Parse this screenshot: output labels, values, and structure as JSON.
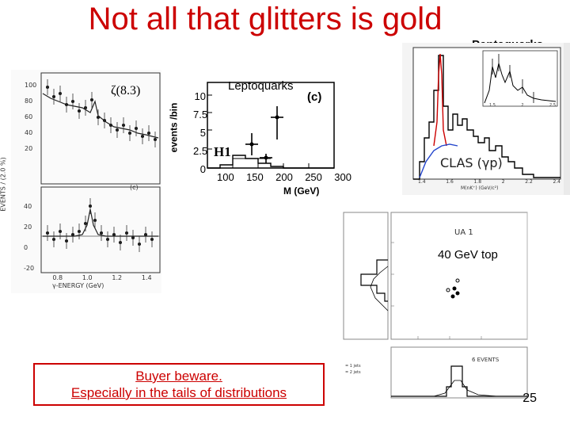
{
  "slide": {
    "title": "Not all that glitters is gold",
    "page_number": "25",
    "warning_line1": "Buyer beware.",
    "warning_line2": "Especially in the tails of distributions"
  },
  "zeta_plot": {
    "label": "ζ(8.3)",
    "y_axis_label": "EVENTS / (2.0 %)",
    "x_axis_label": "γ-ENERGY (GeV)",
    "top_y_ticks": [
      "100",
      "80",
      "60",
      "40",
      "20"
    ],
    "bottom_y_ticks": [
      "40",
      "20",
      "0",
      "-20"
    ],
    "x_ticks": [
      "0.8",
      "1.0",
      "1.2",
      "1.4"
    ],
    "panel_mark": "(c)"
  },
  "leptoquark_plot": {
    "label": "Leptoquarks",
    "y_axis_label": "events /bin",
    "x_axis_label": "M (GeV)",
    "y_ticks": [
      "10",
      "7.5",
      "5",
      "2.5",
      "0"
    ],
    "x_ticks": [
      "100",
      "150",
      "200",
      "250",
      "300"
    ],
    "panel_mark": "(c)",
    "experiment": "H1"
  },
  "pentaquark_plot": {
    "label": "Pentaquarks",
    "experiment": "CLAS (γp)",
    "x_ticks": [
      "1.4",
      "1.6",
      "1.8",
      "2",
      "2.2",
      "2.4"
    ],
    "inset_x_ticks": [
      "1.5",
      "2",
      "2.5"
    ],
    "x_axis_label": "M(nK⁺) (GeV/c²)"
  },
  "top_plot": {
    "label": "40 GeV top",
    "experiment": "UA 1",
    "events_note": "6 EVENTS",
    "legend": [
      "= 1 jets",
      "= 2 jets"
    ]
  }
}
